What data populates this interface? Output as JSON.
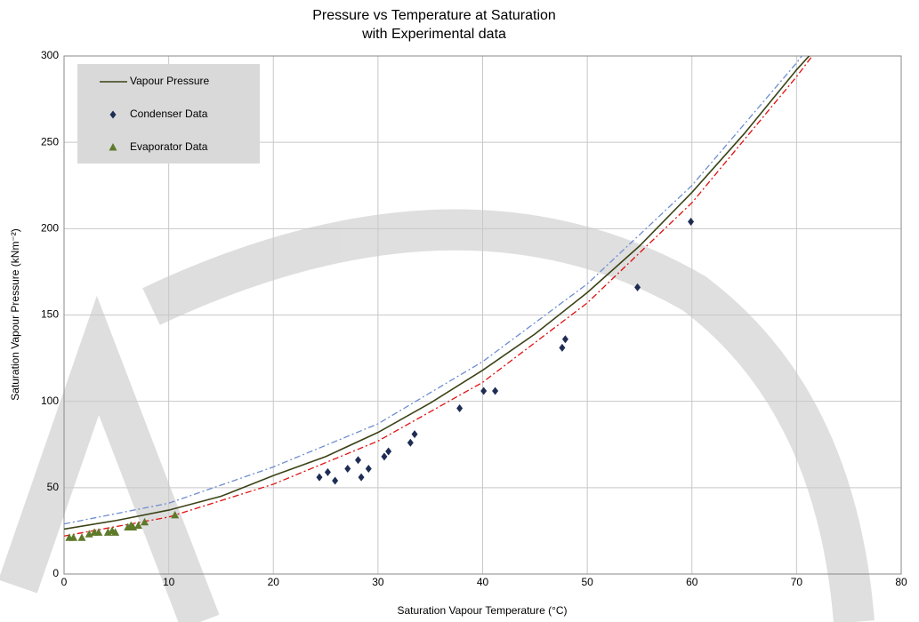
{
  "chart_data": {
    "type": "scatter",
    "title": "Pressure vs Temperature at Saturation",
    "subtitle": "with Experimental data",
    "x_label": "Saturation Vapour Temperature (°C)",
    "y_label": "Saturation Vapour Pressure (kNm⁻²)",
    "xlim": [
      0,
      80
    ],
    "ylim": [
      0,
      300
    ],
    "xticks": [
      0,
      10,
      20,
      30,
      40,
      50,
      60,
      70,
      80
    ],
    "yticks": [
      0,
      50,
      100,
      150,
      200,
      250,
      300
    ],
    "grid": true,
    "legend": "upper left",
    "series": [
      {
        "type": "line",
        "color": "#6e8ed0",
        "dash": "dashdot",
        "x": [
          0,
          10,
          20,
          30,
          40,
          50,
          60,
          70,
          71
        ],
        "values": [
          29,
          41,
          62,
          87,
          123,
          168,
          225,
          296,
          304
        ]
      },
      {
        "type": "line",
        "color": "#e01010",
        "dash": "dashdot",
        "x": [
          0,
          10,
          20,
          30,
          40,
          50,
          60,
          70,
          72
        ],
        "values": [
          22,
          33,
          52,
          77,
          111,
          157,
          215,
          288,
          304
        ]
      },
      {
        "name": "Vapour Pressure",
        "type": "line",
        "color": "#3b4316",
        "dash": "solid",
        "x": [
          0,
          5,
          10,
          15,
          20,
          25,
          30,
          35,
          40,
          45,
          50,
          55,
          60,
          65,
          70,
          71.5
        ],
        "values": [
          26,
          31,
          37,
          45,
          57,
          68,
          82,
          99,
          118,
          139,
          163,
          190,
          221,
          255,
          292,
          302
        ]
      },
      {
        "name": "Condenser Data",
        "type": "scatter",
        "marker": "diamond",
        "color": "#1f2d55",
        "x": [
          24.4,
          25.2,
          25.9,
          27.1,
          28.1,
          28.4,
          29.1,
          30.6,
          31.0,
          33.1,
          33.5,
          37.8,
          40.1,
          41.2,
          47.6,
          47.9,
          54.8,
          59.9
        ],
        "values": [
          56,
          59,
          54,
          61,
          66,
          56,
          61,
          68,
          71,
          76,
          81,
          96,
          106,
          106,
          131,
          136,
          166,
          204
        ]
      },
      {
        "name": "Evaporator Data",
        "type": "scatter",
        "marker": "triangle",
        "color": "#5e7a2a",
        "x": [
          0.5,
          0.9,
          1.7,
          2.4,
          2.9,
          3.3,
          4.2,
          4.6,
          4.9,
          6.1,
          6.4,
          6.6,
          7.1,
          7.7,
          10.6
        ],
        "values": [
          21,
          21,
          21,
          23,
          24,
          24,
          24,
          25,
          24,
          27,
          28,
          27,
          28,
          30,
          34
        ]
      }
    ]
  }
}
